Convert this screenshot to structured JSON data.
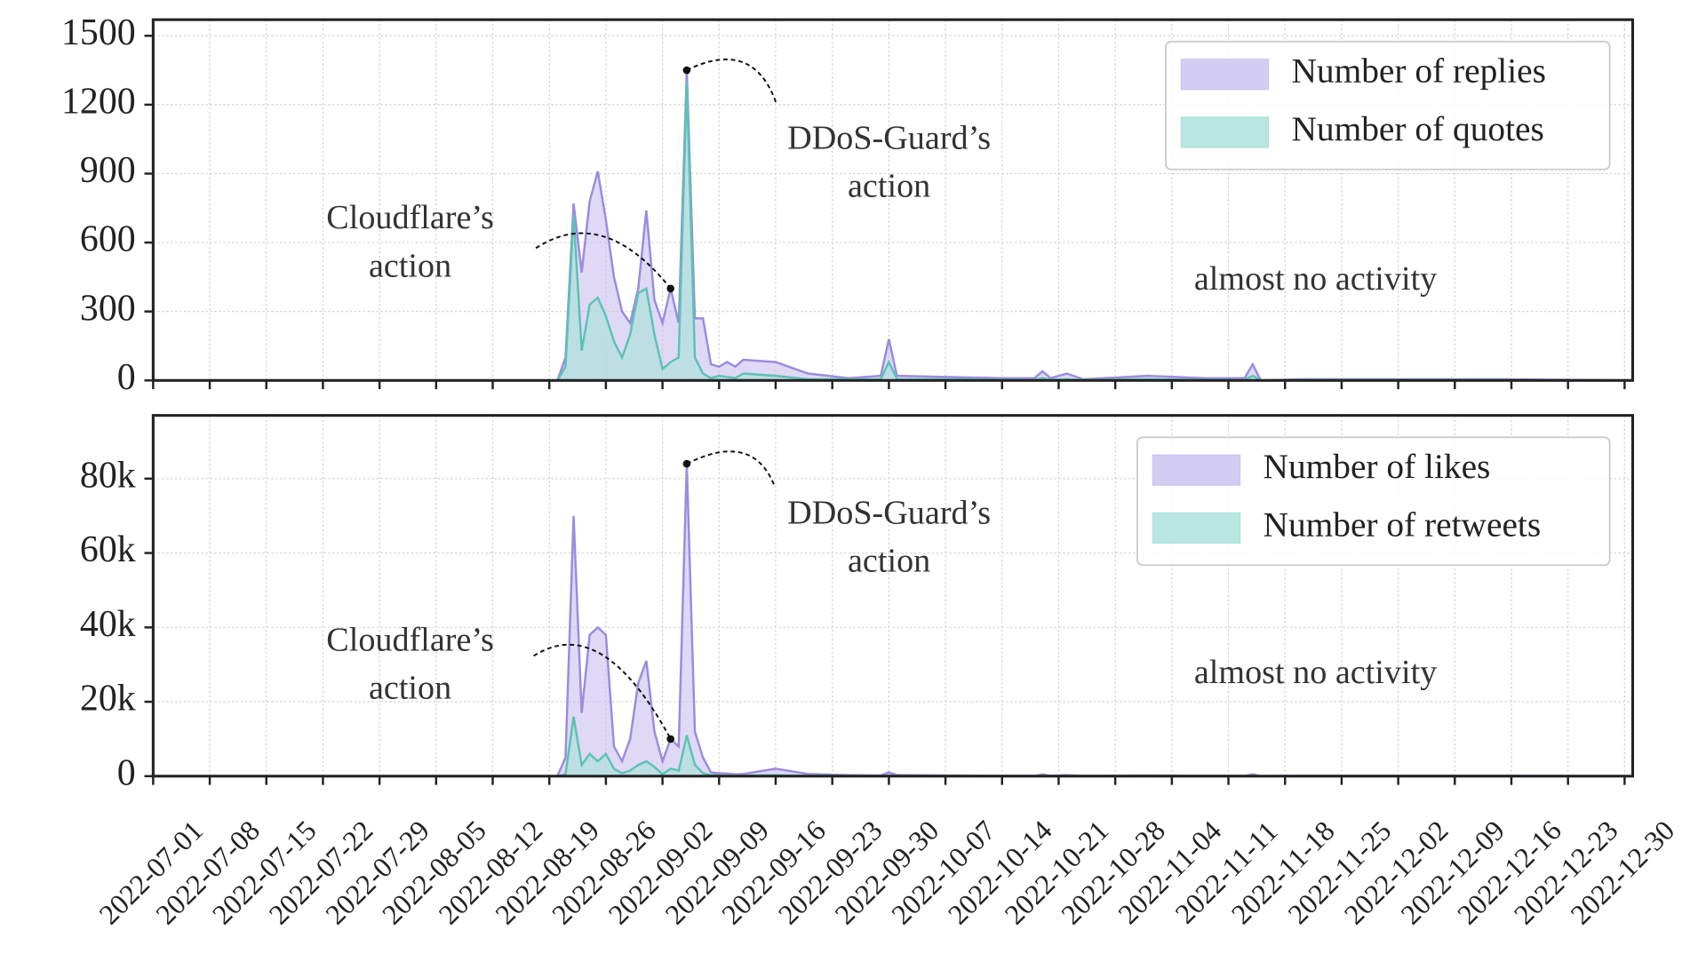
{
  "chart_data": [
    {
      "type": "area",
      "x": [
        "2022-08-20",
        "2022-08-21",
        "2022-08-22",
        "2022-08-23",
        "2022-08-24",
        "2022-08-25",
        "2022-08-26",
        "2022-08-27",
        "2022-08-28",
        "2022-08-29",
        "2022-08-30",
        "2022-08-31",
        "2022-09-01",
        "2022-09-02",
        "2022-09-03",
        "2022-09-04",
        "2022-09-05",
        "2022-09-06",
        "2022-09-07",
        "2022-09-08",
        "2022-09-09",
        "2022-09-10",
        "2022-09-11",
        "2022-09-12",
        "2022-09-16",
        "2022-09-20",
        "2022-09-25",
        "2022-09-29",
        "2022-09-30",
        "2022-10-01",
        "2022-10-07",
        "2022-10-14",
        "2022-10-18",
        "2022-10-19",
        "2022-10-20",
        "2022-10-22",
        "2022-10-24",
        "2022-11-01",
        "2022-11-08",
        "2022-11-13",
        "2022-11-14",
        "2022-11-15",
        "2022-11-20",
        "2022-12-01",
        "2022-12-15",
        "2022-12-30"
      ],
      "series": [
        {
          "name": "Number of replies",
          "color": "#9b8be0",
          "fill": "#c9c0f0",
          "values": [
            0,
            100,
            770,
            470,
            780,
            910,
            700,
            450,
            300,
            250,
            400,
            740,
            350,
            250,
            400,
            250,
            1350,
            270,
            270,
            70,
            60,
            80,
            60,
            90,
            80,
            30,
            10,
            20,
            180,
            20,
            15,
            10,
            10,
            40,
            10,
            30,
            5,
            20,
            10,
            10,
            70,
            0,
            5,
            5,
            5,
            0
          ]
        },
        {
          "name": "Number of quotes",
          "color": "#5cc2b4",
          "fill": "#a6e2d9",
          "values": [
            0,
            60,
            720,
            130,
            330,
            360,
            280,
            170,
            100,
            200,
            380,
            400,
            200,
            50,
            80,
            100,
            1300,
            100,
            30,
            10,
            20,
            15,
            10,
            30,
            20,
            5,
            5,
            5,
            80,
            5,
            5,
            3,
            3,
            10,
            3,
            5,
            2,
            5,
            3,
            3,
            20,
            0,
            2,
            2,
            2,
            0
          ]
        }
      ],
      "xlim": [
        "2022-07-01",
        "2022-12-31"
      ],
      "xticks": [
        "2022-07-01",
        "2022-07-08",
        "2022-07-15",
        "2022-07-22",
        "2022-07-29",
        "2022-08-05",
        "2022-08-12",
        "2022-08-19",
        "2022-08-26",
        "2022-09-02",
        "2022-09-09",
        "2022-09-16",
        "2022-09-23",
        "2022-09-30",
        "2022-10-07",
        "2022-10-14",
        "2022-10-21",
        "2022-10-28",
        "2022-11-04",
        "2022-11-11",
        "2022-11-18",
        "2022-11-25",
        "2022-12-02",
        "2022-12-09",
        "2022-12-16",
        "2022-12-23",
        "2022-12-30"
      ],
      "xtick_labels": false,
      "ylim": [
        0,
        1570
      ],
      "yticks": [
        0,
        300,
        600,
        900,
        1200,
        1500
      ],
      "grid": true,
      "legend": "upper right",
      "annotations": [
        {
          "text": "Cloudflare’s action"
        },
        {
          "text": "DDoS-Guard’s action"
        },
        {
          "text": "almost no activity"
        }
      ]
    },
    {
      "type": "area",
      "x": [
        "2022-08-20",
        "2022-08-21",
        "2022-08-22",
        "2022-08-23",
        "2022-08-24",
        "2022-08-25",
        "2022-08-26",
        "2022-08-27",
        "2022-08-28",
        "2022-08-29",
        "2022-08-30",
        "2022-08-31",
        "2022-09-01",
        "2022-09-02",
        "2022-09-03",
        "2022-09-04",
        "2022-09-05",
        "2022-09-06",
        "2022-09-07",
        "2022-09-08",
        "2022-09-09",
        "2022-09-10",
        "2022-09-11",
        "2022-09-12",
        "2022-09-16",
        "2022-09-20",
        "2022-09-25",
        "2022-09-29",
        "2022-09-30",
        "2022-10-01",
        "2022-10-07",
        "2022-10-14",
        "2022-10-18",
        "2022-10-19",
        "2022-10-20",
        "2022-10-22",
        "2022-10-24",
        "2022-11-01",
        "2022-11-08",
        "2022-11-13",
        "2022-11-14",
        "2022-11-15",
        "2022-11-20",
        "2022-12-01",
        "2022-12-15",
        "2022-12-30"
      ],
      "series": [
        {
          "name": "Number of likes",
          "color": "#9b8be0",
          "fill": "#c9c0f0",
          "values": [
            0,
            5000,
            70000,
            17000,
            38000,
            40000,
            38000,
            8000,
            4000,
            10000,
            25000,
            31000,
            12000,
            4000,
            10000,
            8000,
            84000,
            12000,
            5000,
            1000,
            800,
            700,
            500,
            600,
            2000,
            600,
            300,
            200,
            1000,
            300,
            200,
            100,
            100,
            500,
            100,
            300,
            100,
            200,
            100,
            100,
            500,
            0,
            100,
            100,
            100,
            0
          ]
        },
        {
          "name": "Number of retweets",
          "color": "#5cc2b4",
          "fill": "#a6e2d9",
          "values": [
            0,
            500,
            16000,
            3000,
            6000,
            4000,
            6000,
            2000,
            800,
            1500,
            3000,
            4000,
            2500,
            500,
            2000,
            1500,
            11000,
            3000,
            800,
            300,
            200,
            200,
            100,
            150,
            300,
            100,
            50,
            50,
            200,
            50,
            50,
            20,
            20,
            100,
            20,
            50,
            20,
            50,
            20,
            20,
            100,
            0,
            20,
            20,
            20,
            0
          ]
        }
      ],
      "xlim": [
        "2022-07-01",
        "2022-12-31"
      ],
      "xticks": [
        "2022-07-01",
        "2022-07-08",
        "2022-07-15",
        "2022-07-22",
        "2022-07-29",
        "2022-08-05",
        "2022-08-12",
        "2022-08-19",
        "2022-08-26",
        "2022-09-02",
        "2022-09-09",
        "2022-09-16",
        "2022-09-23",
        "2022-09-30",
        "2022-10-07",
        "2022-10-14",
        "2022-10-21",
        "2022-10-28",
        "2022-11-04",
        "2022-11-11",
        "2022-11-18",
        "2022-11-25",
        "2022-12-02",
        "2022-12-09",
        "2022-12-16",
        "2022-12-23",
        "2022-12-30"
      ],
      "xtick_labels": true,
      "ylim": [
        0,
        97000
      ],
      "yticks": [
        0,
        {
          "value": 20000,
          "label": "20k"
        },
        {
          "value": 40000,
          "label": "40k"
        },
        {
          "value": 60000,
          "label": "60k"
        },
        {
          "value": 80000,
          "label": "80k"
        }
      ],
      "grid": true,
      "legend": "upper right",
      "annotations": [
        {
          "text": "Cloudflare’s action"
        },
        {
          "text": "DDoS-Guard’s action"
        },
        {
          "text": "almost no activity"
        }
      ]
    }
  ]
}
